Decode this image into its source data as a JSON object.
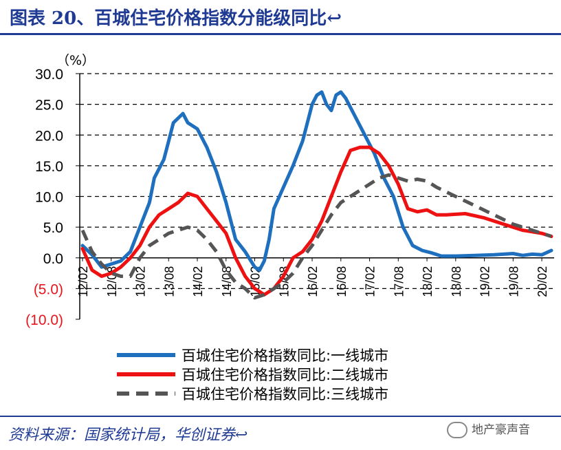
{
  "title": "图表 20、百城住宅价格指数分能级同比↩",
  "source": "资料来源：国家统计局，华创证券↩",
  "watermark": "地产豪声音",
  "chart_data": {
    "type": "line",
    "unit_label": "（%）",
    "ylim": [
      -10,
      30
    ],
    "yticks": [
      {
        "v": 30,
        "label": "30.0"
      },
      {
        "v": 25,
        "label": "25.0"
      },
      {
        "v": 20,
        "label": "20.0"
      },
      {
        "v": 15,
        "label": "15.0"
      },
      {
        "v": 10,
        "label": "10.0"
      },
      {
        "v": 5,
        "label": "5.0"
      },
      {
        "v": 0,
        "label": "0.0"
      },
      {
        "v": -5,
        "label": "(5.0)"
      },
      {
        "v": -10,
        "label": "(10.0)"
      }
    ],
    "xlim": [
      0,
      98
    ],
    "xticks": [
      {
        "i": 0,
        "label": "12/02"
      },
      {
        "i": 6,
        "label": "12/08"
      },
      {
        "i": 12,
        "label": "13/02"
      },
      {
        "i": 18,
        "label": "13/08"
      },
      {
        "i": 24,
        "label": "14/02"
      },
      {
        "i": 30,
        "label": "14/08"
      },
      {
        "i": 36,
        "label": "15/02"
      },
      {
        "i": 42,
        "label": "15/08"
      },
      {
        "i": 48,
        "label": "16/02"
      },
      {
        "i": 54,
        "label": "16/08"
      },
      {
        "i": 60,
        "label": "17/02"
      },
      {
        "i": 66,
        "label": "17/08"
      },
      {
        "i": 72,
        "label": "18/02"
      },
      {
        "i": 78,
        "label": "18/08"
      },
      {
        "i": 84,
        "label": "19/02"
      },
      {
        "i": 90,
        "label": "19/08"
      },
      {
        "i": 96,
        "label": "20/02"
      }
    ],
    "series": [
      {
        "name": "百城住宅价格指数同比:一线城市",
        "color": "#1f6fbf",
        "style": "solid",
        "points": [
          [
            0,
            2
          ],
          [
            2,
            0.5
          ],
          [
            4,
            -1.5
          ],
          [
            6,
            -1
          ],
          [
            8,
            -0.5
          ],
          [
            10,
            1
          ],
          [
            12,
            5
          ],
          [
            14,
            9
          ],
          [
            15,
            13
          ],
          [
            17,
            16
          ],
          [
            18,
            19
          ],
          [
            19,
            22
          ],
          [
            21,
            23.5
          ],
          [
            22,
            22
          ],
          [
            24,
            21
          ],
          [
            26,
            18
          ],
          [
            28,
            14
          ],
          [
            30,
            9
          ],
          [
            32,
            3
          ],
          [
            34,
            1
          ],
          [
            36,
            -1.5
          ],
          [
            37,
            -2
          ],
          [
            38,
            -0.5
          ],
          [
            39,
            3
          ],
          [
            40,
            8
          ],
          [
            42,
            11.5
          ],
          [
            44,
            15
          ],
          [
            46,
            19
          ],
          [
            47,
            22
          ],
          [
            48,
            25
          ],
          [
            49,
            26.5
          ],
          [
            50,
            27
          ],
          [
            51,
            25
          ],
          [
            52,
            24
          ],
          [
            53,
            26.5
          ],
          [
            54,
            27
          ],
          [
            55,
            26
          ],
          [
            57,
            23
          ],
          [
            59,
            20
          ],
          [
            61,
            17
          ],
          [
            63,
            13
          ],
          [
            65,
            10
          ],
          [
            67,
            5
          ],
          [
            69,
            2
          ],
          [
            71,
            1.2
          ],
          [
            73,
            0.8
          ],
          [
            75,
            0.3
          ],
          [
            78,
            0.3
          ],
          [
            82,
            0.4
          ],
          [
            86,
            0.5
          ],
          [
            88,
            0.6
          ],
          [
            90,
            0.7
          ],
          [
            92,
            0.4
          ],
          [
            94,
            0.6
          ],
          [
            96,
            0.5
          ],
          [
            98,
            1.2
          ]
        ]
      },
      {
        "name": "百城住宅价格指数同比:二线城市",
        "color": "#ee1111",
        "style": "solid",
        "points": [
          [
            0,
            1.5
          ],
          [
            2,
            -2
          ],
          [
            4,
            -3
          ],
          [
            6,
            -2.5
          ],
          [
            8,
            -1.5
          ],
          [
            10,
            0
          ],
          [
            12,
            2
          ],
          [
            14,
            5
          ],
          [
            16,
            7
          ],
          [
            18,
            8
          ],
          [
            20,
            9
          ],
          [
            22,
            10.5
          ],
          [
            24,
            10
          ],
          [
            26,
            8
          ],
          [
            28,
            6
          ],
          [
            30,
            4
          ],
          [
            32,
            0
          ],
          [
            34,
            -3
          ],
          [
            36,
            -5
          ],
          [
            37,
            -5.5
          ],
          [
            38,
            -6
          ],
          [
            40,
            -5
          ],
          [
            42,
            -3
          ],
          [
            44,
            0
          ],
          [
            46,
            1
          ],
          [
            48,
            3
          ],
          [
            50,
            6
          ],
          [
            52,
            10
          ],
          [
            54,
            14
          ],
          [
            56,
            17.5
          ],
          [
            58,
            18
          ],
          [
            60,
            18
          ],
          [
            62,
            17
          ],
          [
            64,
            15
          ],
          [
            66,
            12
          ],
          [
            68,
            8
          ],
          [
            70,
            7.5
          ],
          [
            72,
            7.8
          ],
          [
            74,
            7
          ],
          [
            76,
            7
          ],
          [
            80,
            7.2
          ],
          [
            84,
            6.5
          ],
          [
            88,
            5.5
          ],
          [
            92,
            4.5
          ],
          [
            96,
            4
          ],
          [
            98,
            3.5
          ]
        ]
      },
      {
        "name": "百城住宅价格指数同比:三线城市",
        "color": "#555555",
        "style": "dashed",
        "points": [
          [
            0,
            4.5
          ],
          [
            2,
            1
          ],
          [
            4,
            -1
          ],
          [
            6,
            -2.5
          ],
          [
            8,
            -3
          ],
          [
            10,
            -3
          ],
          [
            12,
            0
          ],
          [
            14,
            2
          ],
          [
            16,
            3
          ],
          [
            18,
            4
          ],
          [
            20,
            4.5
          ],
          [
            22,
            5
          ],
          [
            24,
            4.5
          ],
          [
            26,
            3
          ],
          [
            28,
            1
          ],
          [
            30,
            -2
          ],
          [
            32,
            -4
          ],
          [
            34,
            -5
          ],
          [
            36,
            -6.5
          ],
          [
            38,
            -6
          ],
          [
            40,
            -5
          ],
          [
            42,
            -4
          ],
          [
            44,
            -2.5
          ],
          [
            46,
            0
          ],
          [
            48,
            2
          ],
          [
            50,
            4.5
          ],
          [
            52,
            7
          ],
          [
            54,
            9
          ],
          [
            56,
            10
          ],
          [
            58,
            11
          ],
          [
            60,
            12
          ],
          [
            62,
            13
          ],
          [
            64,
            13.5
          ],
          [
            66,
            13
          ],
          [
            68,
            12.5
          ],
          [
            70,
            12.8
          ],
          [
            72,
            12.5
          ],
          [
            74,
            11.5
          ],
          [
            78,
            10
          ],
          [
            82,
            8.5
          ],
          [
            86,
            7
          ],
          [
            90,
            5.5
          ],
          [
            94,
            4.5
          ],
          [
            98,
            3.5
          ]
        ]
      }
    ]
  }
}
